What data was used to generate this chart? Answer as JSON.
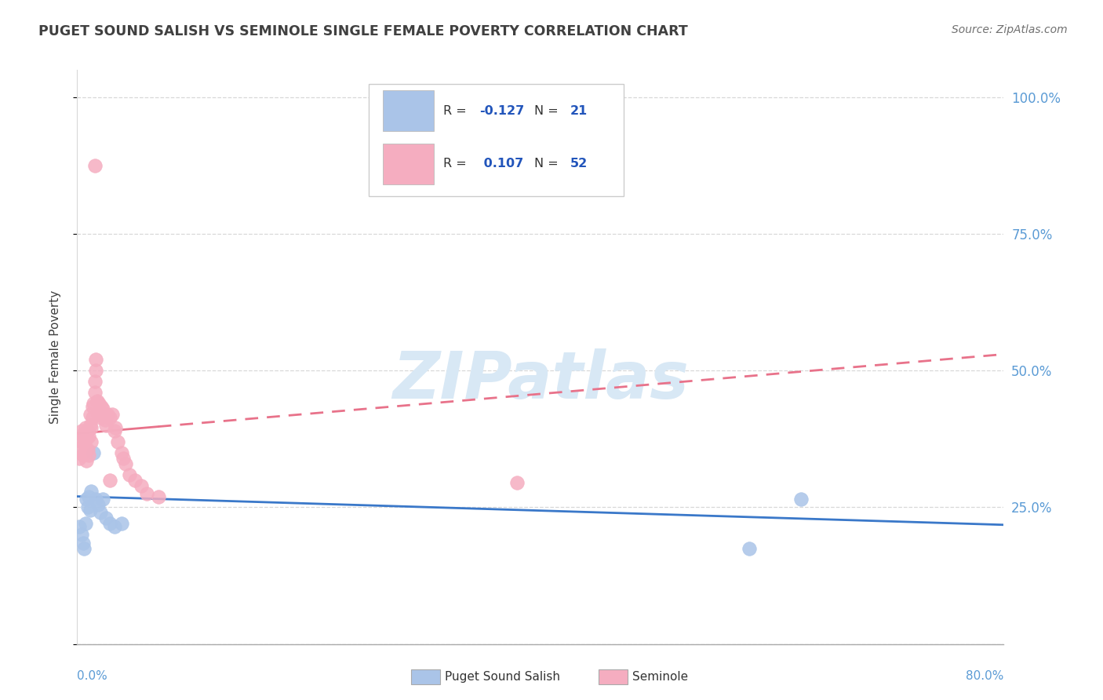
{
  "title": "PUGET SOUND SALISH VS SEMINOLE SINGLE FEMALE POVERTY CORRELATION CHART",
  "source": "Source: ZipAtlas.com",
  "ylabel": "Single Female Poverty",
  "xlim": [
    0.0,
    0.8
  ],
  "ylim": [
    0.0,
    1.05
  ],
  "ytick_vals": [
    0.0,
    0.25,
    0.5,
    0.75,
    1.0
  ],
  "ytick_labels": [
    "",
    "25.0%",
    "50.0%",
    "75.0%",
    "100.0%"
  ],
  "blue_color": "#aac4e8",
  "pink_color": "#f5adc0",
  "blue_line_color": "#3a78c9",
  "pink_line_color": "#e8728a",
  "right_label_color": "#5b9bd5",
  "title_color": "#404040",
  "source_color": "#707070",
  "grid_color": "#d8d8d8",
  "bg_color": "#ffffff",
  "watermark_color": "#d8e8f5",
  "legend_R_color": "#2255bb",
  "puget_x": [
    0.002,
    0.004,
    0.005,
    0.006,
    0.007,
    0.008,
    0.009,
    0.01,
    0.011,
    0.012,
    0.014,
    0.016,
    0.018,
    0.02,
    0.022,
    0.025,
    0.028,
    0.032,
    0.038,
    0.58,
    0.625
  ],
  "puget_y": [
    0.215,
    0.2,
    0.185,
    0.175,
    0.22,
    0.265,
    0.25,
    0.27,
    0.245,
    0.28,
    0.35,
    0.265,
    0.255,
    0.24,
    0.265,
    0.23,
    0.22,
    0.215,
    0.22,
    0.175,
    0.265
  ],
  "seminole_x": [
    0.002,
    0.003,
    0.004,
    0.004,
    0.005,
    0.005,
    0.006,
    0.006,
    0.007,
    0.007,
    0.008,
    0.008,
    0.009,
    0.009,
    0.01,
    0.01,
    0.011,
    0.011,
    0.012,
    0.012,
    0.013,
    0.013,
    0.014,
    0.015,
    0.015,
    0.016,
    0.016,
    0.017,
    0.018,
    0.019,
    0.02,
    0.021,
    0.022,
    0.024,
    0.025,
    0.026,
    0.028,
    0.03,
    0.032,
    0.033,
    0.035,
    0.038,
    0.04,
    0.042,
    0.045,
    0.05,
    0.055,
    0.06,
    0.07,
    0.38,
    0.015,
    0.028
  ],
  "seminole_y": [
    0.34,
    0.36,
    0.37,
    0.39,
    0.345,
    0.38,
    0.35,
    0.385,
    0.36,
    0.395,
    0.335,
    0.375,
    0.355,
    0.39,
    0.345,
    0.38,
    0.4,
    0.42,
    0.37,
    0.395,
    0.415,
    0.435,
    0.44,
    0.46,
    0.48,
    0.5,
    0.52,
    0.445,
    0.42,
    0.44,
    0.415,
    0.435,
    0.43,
    0.41,
    0.4,
    0.42,
    0.415,
    0.42,
    0.39,
    0.395,
    0.37,
    0.35,
    0.34,
    0.33,
    0.31,
    0.3,
    0.29,
    0.275,
    0.27,
    0.295,
    0.875,
    0.3
  ],
  "puget_trend_x": [
    0.0,
    0.8
  ],
  "puget_trend_y_start": 0.27,
  "puget_trend_y_end": 0.218,
  "seminole_trend_x": [
    0.0,
    0.8
  ],
  "seminole_trend_y_start": 0.385,
  "seminole_trend_y_end": 0.53
}
